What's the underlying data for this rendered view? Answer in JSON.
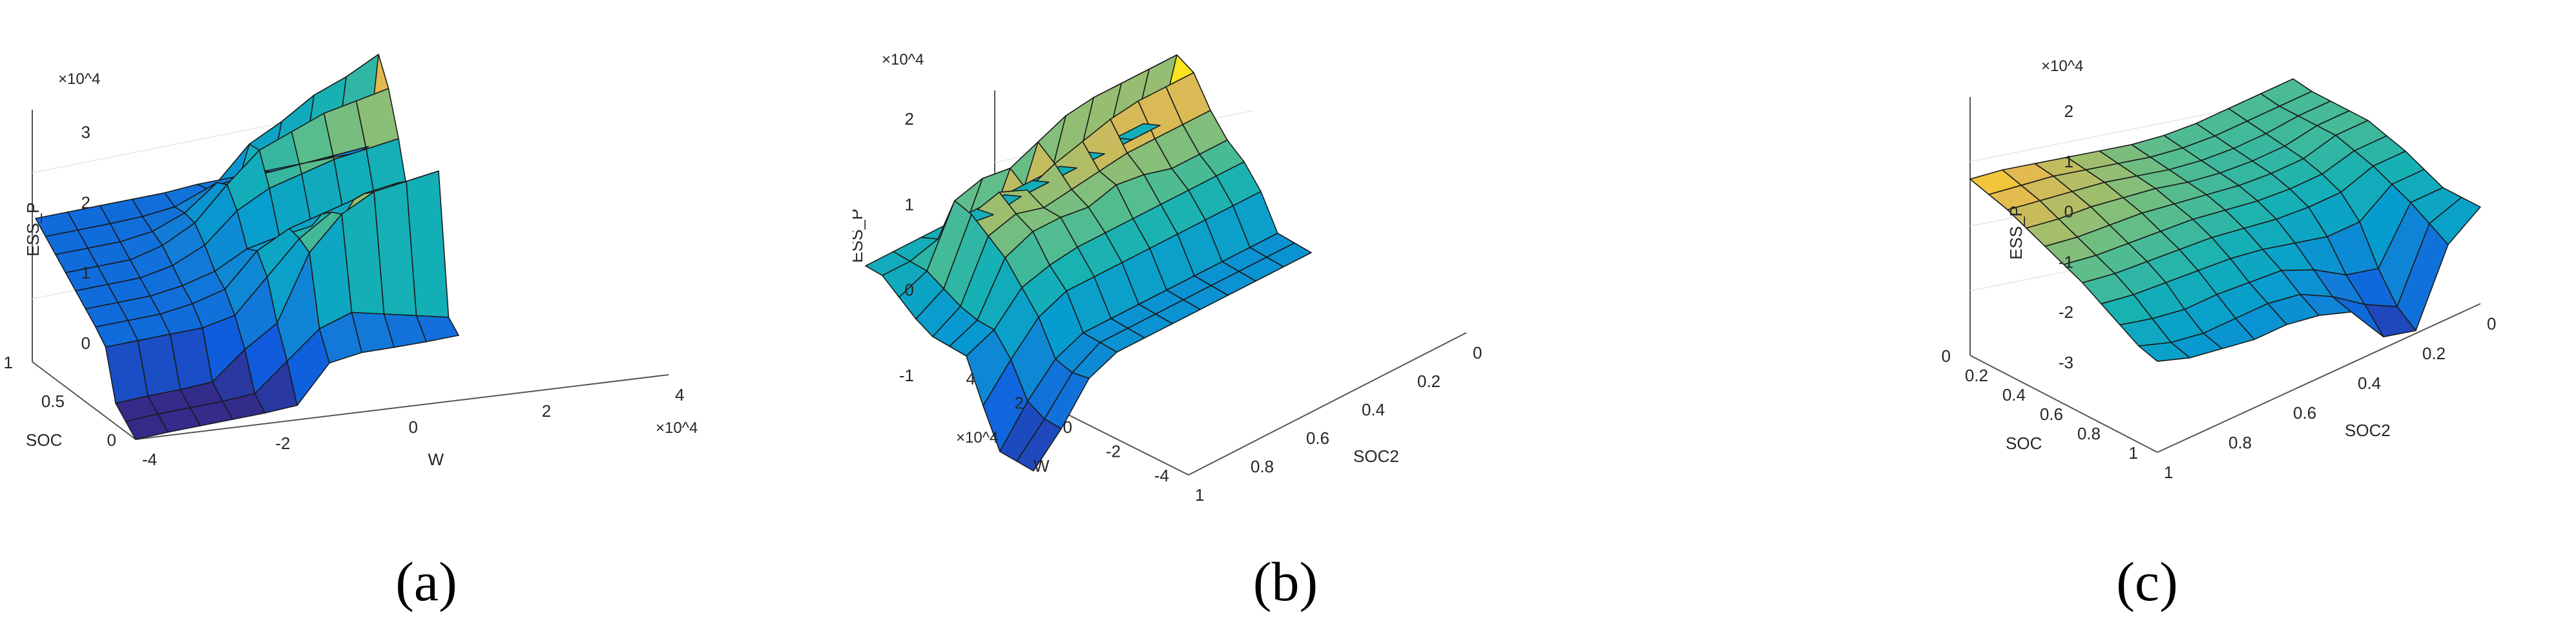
{
  "figure": {
    "captions": [
      "(a)",
      "(b)",
      "(c)"
    ]
  },
  "chart_data": [
    {
      "type": "surface",
      "panel": "(a)",
      "exponent_label": "×10^4",
      "zlabel": "ESS_P",
      "x_axis": {
        "label": "SOC",
        "ticks": [
          "0",
          "0.5",
          "1"
        ]
      },
      "y_axis": {
        "label": "W",
        "ticks": [
          "-4",
          "-2",
          "0",
          "2",
          "4"
        ],
        "exponent_label": "×10^4"
      },
      "z_ticks": [
        "0",
        "1",
        "2",
        "3"
      ],
      "colormap": "parula",
      "x": [
        0,
        0.1,
        0.2,
        0.3,
        0.4,
        0.5,
        0.6,
        0.7,
        0.8,
        0.9,
        1.0
      ],
      "y": [
        -4,
        -3.2,
        -2.4,
        -1.6,
        -0.8,
        0,
        0.8,
        1.6,
        2.4,
        3.2,
        4
      ],
      "z": [
        [
          -1.0,
          -0.98,
          -0.98,
          -0.98,
          -0.98,
          -0.95,
          -0.05,
          0.05,
          0.02,
          0,
          0
        ],
        [
          -1.0,
          -0.98,
          -0.98,
          -0.98,
          -0.95,
          -0.3,
          0.35,
          0.6,
          0.4,
          0.2,
          0
        ],
        [
          -1.0,
          -0.98,
          -0.98,
          -0.95,
          -0.3,
          0.2,
          1.8,
          2.6,
          3.0,
          3.1,
          3.2
        ],
        [
          -0.05,
          -0.05,
          -0.05,
          -0.05,
          0.1,
          0.9,
          1.7,
          2.2,
          2.5,
          2.6,
          2.6
        ],
        [
          0,
          0,
          0,
          0.1,
          0.3,
          1.1,
          1.5,
          1.7,
          1.9,
          2.0,
          2.1
        ],
        [
          0,
          0,
          0,
          0.1,
          0.3,
          0.7,
          0.85,
          0.95,
          1.05,
          1.1,
          1.15
        ],
        [
          0,
          0,
          0,
          0.15,
          0.5,
          1.2,
          1.6,
          1.8,
          2.0,
          2.1,
          2.2
        ],
        [
          0,
          0,
          0,
          0.2,
          0.6,
          1.4,
          2.1,
          2.4,
          2.7,
          2.85,
          3.0
        ],
        [
          0,
          0,
          0,
          0.1,
          0.4,
          1.0,
          1.8,
          2.2,
          2.7,
          3.0,
          3.4
        ],
        [
          0,
          0,
          0,
          0.02,
          0.1,
          0.4,
          0.5,
          0.5,
          0.55,
          0.6,
          0.65
        ],
        [
          0,
          0,
          0,
          0,
          0,
          0.05,
          0.05,
          0.05,
          0.05,
          0.05,
          0.05
        ]
      ]
    },
    {
      "type": "surface",
      "panel": "(b)",
      "exponent_label": "×10^4",
      "zlabel": "ESS_P",
      "x_axis": {
        "label": "W",
        "ticks": [
          "-4",
          "-2",
          "0",
          "2",
          "4"
        ],
        "exponent_label": "×10^4"
      },
      "y_axis": {
        "label": "SOC2",
        "ticks": [
          "1",
          "0.8",
          "0.6",
          "0.4",
          "0.2",
          "0"
        ]
      },
      "z_ticks": [
        "-1",
        "0",
        "1",
        "2"
      ],
      "colormap": "parula",
      "x": [
        -4,
        -3.2,
        -2.4,
        -1.6,
        -0.8,
        0,
        0.8,
        1.6,
        2.4,
        3.2,
        4
      ],
      "y": [
        1,
        0.9,
        0.8,
        0.7,
        0.6,
        0.5,
        0.4,
        0.3,
        0.2,
        0.1,
        0
      ],
      "z": [
        [
          -1.9,
          -1.2,
          -0.3,
          0,
          0,
          0,
          0,
          0,
          0,
          0,
          0
        ],
        [
          -1.9,
          -1.2,
          -0.4,
          0,
          0,
          0,
          0,
          0,
          0,
          0,
          0
        ],
        [
          -1.9,
          -1.0,
          -0.3,
          0,
          0,
          0,
          0,
          0,
          0,
          0,
          0
        ],
        [
          -1.0,
          -0.2,
          0.5,
          0.8,
          0.8,
          0.8,
          0.8,
          0.8,
          0.8,
          0.8,
          0.8
        ],
        [
          0,
          0.3,
          1.0,
          1.2,
          1.3,
          1.3,
          1.3,
          1.3,
          1.3,
          1.3,
          1.3
        ],
        [
          0,
          0.3,
          1.5,
          1.8,
          1.8,
          1.7,
          1.9,
          1.8,
          1.6,
          1.6,
          1.6
        ],
        [
          0,
          0.4,
          1.8,
          2.0,
          1.8,
          1.9,
          2.0,
          2.1,
          2.1,
          2.1,
          2.1
        ],
        [
          0.2,
          0.6,
          2.1,
          2.3,
          2.0,
          2.3,
          2.5,
          2.7,
          2.8,
          2.8,
          2.8
        ],
        [
          0.5,
          0.8,
          2.2,
          2.4,
          2.3,
          2.6,
          2.9,
          3.0,
          3.0,
          3.0,
          3.0
        ],
        [
          0.8,
          0.8,
          1.0,
          1.0,
          0.9,
          1.0,
          1.0,
          1.0,
          1.0,
          1.0,
          1.0
        ],
        [
          0.8,
          0.8,
          0.8,
          0.8,
          0.8,
          0.8,
          0.8,
          0.8,
          0.8,
          0.8,
          0.8
        ]
      ]
    },
    {
      "type": "surface",
      "panel": "(c)",
      "exponent_label": "×10^4",
      "zlabel": "ESS_P",
      "x_axis": {
        "label": "SOC",
        "ticks": [
          "1",
          "0.8",
          "0.6",
          "0.4",
          "0.2",
          "0"
        ]
      },
      "y_axis": {
        "label": "SOC2",
        "ticks": [
          "1",
          "0.8",
          "0.6",
          "0.4",
          "0.2",
          "0"
        ]
      },
      "z_ticks": [
        "-3",
        "-2",
        "-1",
        "0",
        "1",
        "2"
      ],
      "colormap": "parula",
      "x": [
        1,
        0.9,
        0.8,
        0.7,
        0.6,
        0.5,
        0.4,
        0.3,
        0.2,
        0.1,
        0
      ],
      "y": [
        1,
        0.9,
        0.8,
        0.7,
        0.6,
        0.5,
        0.4,
        0.3,
        0.2,
        0.1,
        0
      ],
      "z": [
        [
          -0.2,
          -0.6,
          -0.8,
          -1.0,
          -1.0,
          -1.2,
          -1.6,
          -3.0,
          -3.3,
          -0.8,
          0
        ],
        [
          0,
          -0.4,
          -0.6,
          -0.6,
          -0.6,
          -0.8,
          -1.4,
          -2.2,
          -2.8,
          -0.4,
          0
        ],
        [
          0.4,
          0.1,
          -0.1,
          -0.1,
          -0.2,
          -0.3,
          -0.8,
          -1.5,
          -1.8,
          0,
          0
        ],
        [
          0.8,
          0.6,
          0.5,
          0.4,
          0.3,
          0.1,
          -0.2,
          -0.5,
          -0.5,
          0.3,
          0.3
        ],
        [
          1.2,
          1.0,
          0.9,
          0.8,
          0.7,
          0.5,
          0.3,
          0.2,
          0.2,
          0.6,
          0.6
        ],
        [
          1.5,
          1.3,
          1.2,
          1.1,
          1.0,
          0.8,
          0.6,
          0.5,
          0.5,
          0.8,
          0.8
        ],
        [
          1.8,
          1.6,
          1.5,
          1.4,
          1.2,
          1.0,
          0.8,
          0.7,
          0.7,
          1.0,
          1.0
        ],
        [
          2.1,
          1.9,
          1.8,
          1.6,
          1.4,
          1.1,
          0.9,
          0.8,
          0.8,
          1.0,
          1.0
        ],
        [
          2.4,
          2.2,
          2.0,
          1.8,
          1.5,
          1.2,
          1.0,
          0.9,
          0.9,
          1.0,
          1.0
        ],
        [
          2.6,
          2.4,
          2.2,
          1.9,
          1.6,
          1.3,
          1.1,
          1.0,
          1.0,
          1.0,
          1.0
        ],
        [
          2.8,
          2.6,
          2.3,
          2.0,
          1.7,
          1.4,
          1.2,
          1.1,
          1.1,
          1.1,
          1.1
        ]
      ]
    }
  ]
}
